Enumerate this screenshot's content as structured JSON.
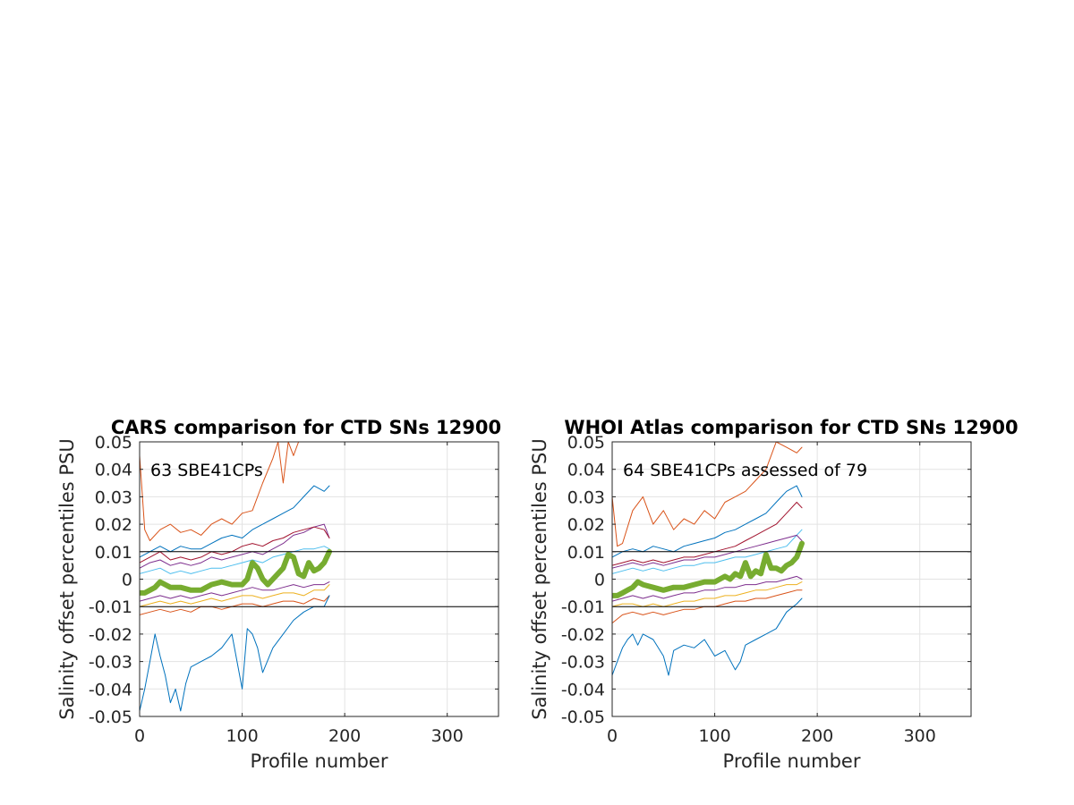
{
  "chart_data": [
    {
      "type": "line",
      "title": "CARS comparison for CTD SNs 12900",
      "xlabel": "Profile number",
      "ylabel": "Salinity offset percentiles PSU",
      "annotation": "63 SBE41CPs",
      "xlim": [
        0,
        350
      ],
      "ylim": [
        -0.05,
        0.05
      ],
      "xticks": [
        "0",
        "100",
        "200",
        "300"
      ],
      "yticks": [
        "0.05",
        "0.04",
        "0.03",
        "0.02",
        "0.01",
        "0",
        "-0.01",
        "-0.02",
        "-0.03",
        "-0.04",
        "-0.05"
      ],
      "grid": true,
      "reference_lines": [
        0.01,
        -0.01
      ],
      "series": [
        {
          "color": "#D95319",
          "x": [
            0,
            5,
            10,
            20,
            30,
            40,
            50,
            60,
            70,
            80,
            90,
            100,
            110,
            120,
            130,
            135,
            140,
            145,
            150,
            155,
            160
          ],
          "values": [
            0.045,
            0.018,
            0.014,
            0.018,
            0.02,
            0.017,
            0.018,
            0.016,
            0.02,
            0.022,
            0.02,
            0.024,
            0.025,
            0.035,
            0.044,
            0.05,
            0.035,
            0.05,
            0.045,
            0.05,
            0.05
          ]
        },
        {
          "color": "#0072BD",
          "x": [
            0,
            10,
            20,
            30,
            40,
            50,
            60,
            70,
            80,
            90,
            100,
            110,
            120,
            130,
            140,
            150,
            160,
            170,
            180,
            185
          ],
          "values": [
            0.008,
            0.01,
            0.012,
            0.01,
            0.012,
            0.011,
            0.011,
            0.013,
            0.015,
            0.016,
            0.015,
            0.018,
            0.02,
            0.022,
            0.024,
            0.026,
            0.03,
            0.034,
            0.032,
            0.034
          ]
        },
        {
          "color": "#7E2F8E",
          "x": [
            0,
            10,
            20,
            30,
            40,
            50,
            60,
            70,
            80,
            90,
            100,
            110,
            120,
            130,
            140,
            150,
            160,
            170,
            180,
            185
          ],
          "values": [
            0.004,
            0.006,
            0.007,
            0.005,
            0.006,
            0.005,
            0.006,
            0.008,
            0.007,
            0.008,
            0.009,
            0.01,
            0.009,
            0.011,
            0.013,
            0.016,
            0.017,
            0.019,
            0.02,
            0.015
          ]
        },
        {
          "color": "#4DBEEE",
          "x": [
            0,
            10,
            20,
            30,
            40,
            50,
            60,
            70,
            80,
            90,
            100,
            110,
            120,
            130,
            140,
            150,
            160,
            170,
            180,
            185
          ],
          "values": [
            0.002,
            0.003,
            0.004,
            0.002,
            0.003,
            0.002,
            0.003,
            0.004,
            0.004,
            0.005,
            0.006,
            0.007,
            0.006,
            0.008,
            0.009,
            0.01,
            0.011,
            0.011,
            0.012,
            0.011
          ]
        },
        {
          "color": "#A2142F",
          "x": [
            0,
            10,
            20,
            30,
            40,
            50,
            60,
            70,
            80,
            90,
            100,
            110,
            120,
            130,
            140,
            150,
            160,
            170,
            180,
            185
          ],
          "values": [
            0.006,
            0.008,
            0.01,
            0.007,
            0.008,
            0.007,
            0.008,
            0.01,
            0.009,
            0.01,
            0.012,
            0.013,
            0.012,
            0.014,
            0.015,
            0.017,
            0.018,
            0.019,
            0.018,
            0.015
          ]
        },
        {
          "color": "#77AC30",
          "width": 6,
          "x": [
            0,
            5,
            10,
            15,
            20,
            25,
            30,
            40,
            50,
            60,
            70,
            80,
            90,
            100,
            105,
            110,
            115,
            120,
            125,
            130,
            140,
            145,
            150,
            155,
            160,
            165,
            170,
            175,
            180,
            185
          ],
          "values": [
            -0.005,
            -0.005,
            -0.004,
            -0.003,
            -0.001,
            -0.002,
            -0.003,
            -0.003,
            -0.004,
            -0.004,
            -0.002,
            -0.001,
            -0.002,
            -0.002,
            0.0,
            0.006,
            0.004,
            0.0,
            -0.002,
            0.0,
            0.004,
            0.009,
            0.008,
            0.002,
            0.001,
            0.006,
            0.003,
            0.004,
            0.006,
            0.01
          ]
        },
        {
          "color": "#7E2F8E",
          "x": [
            0,
            10,
            20,
            30,
            40,
            50,
            60,
            70,
            80,
            90,
            100,
            110,
            120,
            130,
            140,
            150,
            160,
            170,
            180,
            185
          ],
          "values": [
            -0.008,
            -0.007,
            -0.006,
            -0.007,
            -0.006,
            -0.007,
            -0.006,
            -0.005,
            -0.006,
            -0.005,
            -0.004,
            -0.003,
            -0.004,
            -0.004,
            -0.003,
            -0.002,
            -0.003,
            -0.002,
            -0.002,
            -0.001
          ]
        },
        {
          "color": "#EDB120",
          "x": [
            0,
            10,
            20,
            30,
            40,
            50,
            60,
            70,
            80,
            90,
            100,
            110,
            120,
            130,
            140,
            150,
            160,
            170,
            180,
            185
          ],
          "values": [
            -0.01,
            -0.009,
            -0.008,
            -0.009,
            -0.008,
            -0.009,
            -0.008,
            -0.007,
            -0.008,
            -0.007,
            -0.006,
            -0.006,
            -0.007,
            -0.006,
            -0.005,
            -0.005,
            -0.006,
            -0.004,
            -0.004,
            -0.002
          ]
        },
        {
          "color": "#D95319",
          "x": [
            0,
            10,
            20,
            30,
            40,
            50,
            60,
            70,
            80,
            90,
            100,
            110,
            120,
            130,
            140,
            150,
            160,
            170,
            180,
            185
          ],
          "values": [
            -0.013,
            -0.012,
            -0.011,
            -0.012,
            -0.011,
            -0.012,
            -0.01,
            -0.01,
            -0.011,
            -0.01,
            -0.009,
            -0.009,
            -0.01,
            -0.009,
            -0.008,
            -0.008,
            -0.009,
            -0.007,
            -0.008,
            -0.006
          ]
        },
        {
          "color": "#0072BD",
          "x": [
            0,
            5,
            10,
            15,
            20,
            25,
            30,
            35,
            40,
            45,
            50,
            60,
            70,
            80,
            90,
            100,
            105,
            110,
            115,
            120,
            130,
            140,
            150,
            160,
            170,
            180,
            185
          ],
          "values": [
            -0.048,
            -0.04,
            -0.03,
            -0.02,
            -0.028,
            -0.035,
            -0.045,
            -0.04,
            -0.048,
            -0.038,
            -0.032,
            -0.03,
            -0.028,
            -0.025,
            -0.02,
            -0.04,
            -0.018,
            -0.02,
            -0.025,
            -0.034,
            -0.025,
            -0.02,
            -0.015,
            -0.012,
            -0.01,
            -0.01,
            -0.006
          ]
        }
      ]
    },
    {
      "type": "line",
      "title": "WHOI Atlas comparison for CTD SNs 12900",
      "xlabel": "Profile number",
      "ylabel": "Salinity offset percentiles PSU",
      "annotation": "64 SBE41CPs assessed of 79",
      "xlim": [
        0,
        350
      ],
      "ylim": [
        -0.05,
        0.05
      ],
      "xticks": [
        "0",
        "100",
        "200",
        "300"
      ],
      "yticks": [
        "0.05",
        "0.04",
        "0.03",
        "0.02",
        "0.01",
        "0",
        "-0.01",
        "-0.02",
        "-0.03",
        "-0.04",
        "-0.05"
      ],
      "grid": true,
      "reference_lines": [
        0.01,
        -0.01
      ],
      "series": [
        {
          "color": "#D95319",
          "x": [
            0,
            5,
            10,
            20,
            30,
            40,
            50,
            60,
            70,
            80,
            90,
            100,
            110,
            120,
            130,
            140,
            150,
            160,
            170,
            180,
            185
          ],
          "values": [
            0.03,
            0.012,
            0.013,
            0.025,
            0.03,
            0.02,
            0.025,
            0.018,
            0.022,
            0.02,
            0.025,
            0.022,
            0.028,
            0.03,
            0.032,
            0.036,
            0.04,
            0.05,
            0.048,
            0.046,
            0.048
          ]
        },
        {
          "color": "#0072BD",
          "x": [
            0,
            10,
            20,
            30,
            40,
            50,
            60,
            70,
            80,
            90,
            100,
            110,
            120,
            130,
            140,
            150,
            160,
            170,
            180,
            185
          ],
          "values": [
            0.008,
            0.01,
            0.011,
            0.01,
            0.012,
            0.011,
            0.01,
            0.012,
            0.013,
            0.014,
            0.015,
            0.017,
            0.018,
            0.02,
            0.022,
            0.024,
            0.028,
            0.032,
            0.034,
            0.03
          ]
        },
        {
          "color": "#A2142F",
          "x": [
            0,
            10,
            20,
            30,
            40,
            50,
            60,
            70,
            80,
            90,
            100,
            110,
            120,
            130,
            140,
            150,
            160,
            170,
            180,
            185
          ],
          "values": [
            0.005,
            0.006,
            0.007,
            0.006,
            0.007,
            0.006,
            0.007,
            0.008,
            0.008,
            0.009,
            0.01,
            0.011,
            0.012,
            0.014,
            0.016,
            0.018,
            0.02,
            0.024,
            0.028,
            0.026
          ]
        },
        {
          "color": "#4DBEEE",
          "x": [
            0,
            10,
            20,
            30,
            40,
            50,
            60,
            70,
            80,
            90,
            100,
            110,
            120,
            130,
            140,
            150,
            160,
            170,
            180,
            185
          ],
          "values": [
            0.002,
            0.003,
            0.004,
            0.003,
            0.004,
            0.003,
            0.004,
            0.005,
            0.005,
            0.006,
            0.006,
            0.007,
            0.008,
            0.008,
            0.009,
            0.01,
            0.011,
            0.012,
            0.016,
            0.018
          ]
        },
        {
          "color": "#7E2F8E",
          "x": [
            0,
            10,
            20,
            30,
            40,
            50,
            60,
            70,
            80,
            90,
            100,
            110,
            120,
            130,
            140,
            150,
            160,
            170,
            180,
            185
          ],
          "values": [
            0.004,
            0.005,
            0.006,
            0.005,
            0.006,
            0.005,
            0.006,
            0.007,
            0.007,
            0.008,
            0.008,
            0.009,
            0.01,
            0.011,
            0.012,
            0.013,
            0.014,
            0.015,
            0.016,
            0.014
          ]
        },
        {
          "color": "#77AC30",
          "width": 6,
          "x": [
            0,
            5,
            10,
            15,
            20,
            25,
            30,
            40,
            50,
            60,
            70,
            80,
            90,
            100,
            110,
            115,
            120,
            125,
            130,
            135,
            140,
            145,
            150,
            155,
            160,
            165,
            170,
            175,
            180,
            185
          ],
          "values": [
            -0.006,
            -0.006,
            -0.005,
            -0.004,
            -0.003,
            -0.001,
            -0.002,
            -0.003,
            -0.004,
            -0.003,
            -0.003,
            -0.002,
            -0.001,
            -0.001,
            0.001,
            0.0,
            0.002,
            0.001,
            0.006,
            0.001,
            0.003,
            0.002,
            0.009,
            0.004,
            0.004,
            0.003,
            0.005,
            0.006,
            0.008,
            0.013
          ]
        },
        {
          "color": "#7E2F8E",
          "x": [
            0,
            10,
            20,
            30,
            40,
            50,
            60,
            70,
            80,
            90,
            100,
            110,
            120,
            130,
            140,
            150,
            160,
            170,
            180,
            185
          ],
          "values": [
            -0.008,
            -0.007,
            -0.006,
            -0.007,
            -0.006,
            -0.007,
            -0.006,
            -0.005,
            -0.005,
            -0.004,
            -0.004,
            -0.003,
            -0.003,
            -0.002,
            -0.002,
            -0.001,
            -0.001,
            0.0,
            0.001,
            0.0
          ]
        },
        {
          "color": "#EDB120",
          "x": [
            0,
            10,
            20,
            30,
            40,
            50,
            60,
            70,
            80,
            90,
            100,
            110,
            120,
            130,
            140,
            150,
            160,
            170,
            180,
            185
          ],
          "values": [
            -0.01,
            -0.009,
            -0.009,
            -0.01,
            -0.009,
            -0.01,
            -0.009,
            -0.008,
            -0.008,
            -0.007,
            -0.007,
            -0.006,
            -0.006,
            -0.005,
            -0.004,
            -0.004,
            -0.003,
            -0.002,
            -0.002,
            -0.001
          ]
        },
        {
          "color": "#D95319",
          "x": [
            0,
            10,
            20,
            30,
            40,
            50,
            60,
            70,
            80,
            90,
            100,
            110,
            120,
            130,
            140,
            150,
            160,
            170,
            180,
            185
          ],
          "values": [
            -0.016,
            -0.013,
            -0.012,
            -0.013,
            -0.012,
            -0.013,
            -0.012,
            -0.011,
            -0.011,
            -0.01,
            -0.01,
            -0.009,
            -0.008,
            -0.008,
            -0.007,
            -0.007,
            -0.006,
            -0.005,
            -0.004,
            -0.004
          ]
        },
        {
          "color": "#0072BD",
          "x": [
            0,
            5,
            10,
            15,
            20,
            25,
            30,
            40,
            50,
            55,
            60,
            70,
            80,
            90,
            100,
            110,
            120,
            125,
            130,
            140,
            150,
            160,
            170,
            180,
            185
          ],
          "values": [
            -0.035,
            -0.03,
            -0.025,
            -0.022,
            -0.02,
            -0.024,
            -0.02,
            -0.022,
            -0.028,
            -0.035,
            -0.026,
            -0.024,
            -0.025,
            -0.022,
            -0.028,
            -0.026,
            -0.033,
            -0.03,
            -0.024,
            -0.022,
            -0.02,
            -0.018,
            -0.012,
            -0.009,
            -0.007
          ]
        }
      ]
    }
  ]
}
